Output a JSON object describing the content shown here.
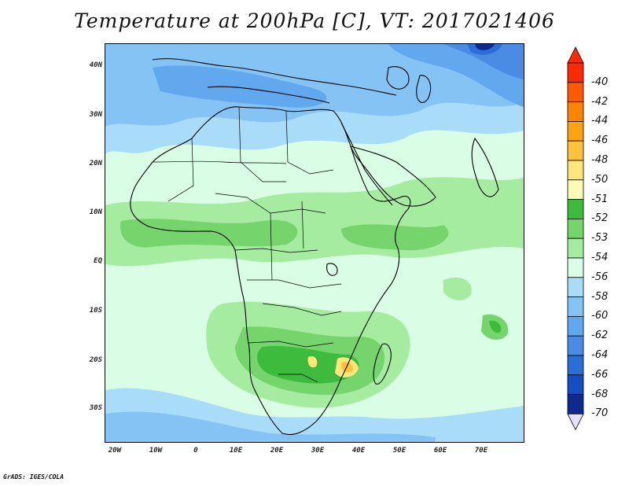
{
  "title": "Temperature at 200hPa [C], VT: 2017021406",
  "credit": "GrADS: IGES/COLA",
  "latitude_labels": [
    "40N",
    "30N",
    "20N",
    "10N",
    "EQ",
    "10S",
    "20S",
    "30S"
  ],
  "longitude_labels": [
    "20W",
    "10W",
    "0",
    "10E",
    "20E",
    "30E",
    "40E",
    "50E",
    "60E",
    "70E"
  ],
  "colorbar": {
    "labels": [
      "-40",
      "-42",
      "-44",
      "-46",
      "-48",
      "-50",
      "-51",
      "-52",
      "-53",
      "-54",
      "-56",
      "-58",
      "-60",
      "-62",
      "-64",
      "-66",
      "-68",
      "-70"
    ],
    "colors": [
      "#ff2a00",
      "#ff5a00",
      "#ff8400",
      "#ffa214",
      "#ffc23c",
      "#ffe77e",
      "#fffbb4",
      "#3dbb3d",
      "#75d56c",
      "#a5eca0",
      "#d9fde5",
      "#a9dcf8",
      "#85c3f4",
      "#61a8ee",
      "#4a8ce4",
      "#2a6ed6",
      "#144ec0",
      "#0d2a8c"
    ],
    "top_arrow_color": "#ff2a00",
    "bottom_arrow_color": "#e6e0fb"
  }
}
